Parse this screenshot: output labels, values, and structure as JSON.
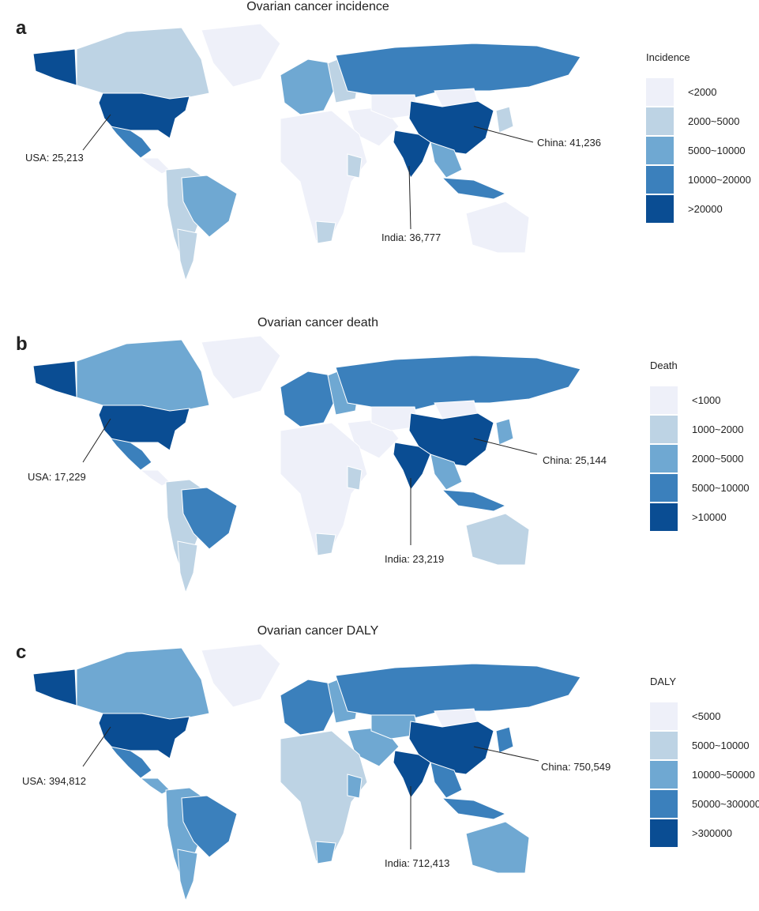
{
  "colors": {
    "ocean": "#ffffff",
    "scale": [
      "#eef0f9",
      "#bdd3e4",
      "#6fa8d2",
      "#3b80bc",
      "#0a4d93"
    ],
    "border": "#ffffff"
  },
  "panels": [
    {
      "id": "a",
      "letter": "a",
      "title": "Ovarian cancer incidence",
      "legend_title": "Incidence",
      "legend": [
        "<2000",
        "2000~5000",
        "5000~10000",
        "10000~20000",
        ">20000"
      ],
      "callouts": {
        "usa": "USA: 25,213",
        "china": "China: 41,236",
        "india": "India: 36,777"
      },
      "levels": {
        "canada": 1,
        "usa": 4,
        "alaska": 4,
        "mexico": 3,
        "central_america": 0,
        "brazil": 2,
        "south_america": 1,
        "argentina": 1,
        "greenland": 0,
        "europe_w": 2,
        "europe_e": 1,
        "russia": 3,
        "africa": 0,
        "south_africa": 1,
        "east_africa": 1,
        "middle_east": 0,
        "central_asia": 0,
        "china": 4,
        "india": 4,
        "se_asia": 2,
        "indonesia": 3,
        "japan": 1,
        "australia": 0,
        "mongolia": 0
      }
    },
    {
      "id": "b",
      "letter": "b",
      "title": "Ovarian cancer death",
      "legend_title": "Death",
      "legend": [
        "<1000",
        "1000~2000",
        "2000~5000",
        "5000~10000",
        ">10000"
      ],
      "callouts": {
        "usa": "USA: 17,229",
        "china": "China: 25,144",
        "india": "India: 23,219"
      },
      "levels": {
        "canada": 2,
        "usa": 4,
        "alaska": 4,
        "mexico": 3,
        "central_america": 0,
        "brazil": 3,
        "south_america": 1,
        "argentina": 1,
        "greenland": 0,
        "europe_w": 3,
        "europe_e": 2,
        "russia": 3,
        "africa": 0,
        "south_africa": 1,
        "east_africa": 1,
        "middle_east": 0,
        "central_asia": 0,
        "china": 4,
        "india": 4,
        "se_asia": 2,
        "indonesia": 3,
        "japan": 2,
        "australia": 1,
        "mongolia": 0
      }
    },
    {
      "id": "c",
      "letter": "c",
      "title": "Ovarian cancer DALY",
      "legend_title": "DALY",
      "legend": [
        "<5000",
        "5000~10000",
        "10000~50000",
        "50000~300000",
        ">300000"
      ],
      "callouts": {
        "usa": "USA: 394,812",
        "china": "China: 750,549",
        "india": "India: 712,413"
      },
      "levels": {
        "canada": 2,
        "usa": 4,
        "alaska": 4,
        "mexico": 3,
        "central_america": 2,
        "brazil": 3,
        "south_america": 2,
        "argentina": 2,
        "greenland": 0,
        "europe_w": 3,
        "europe_e": 2,
        "russia": 3,
        "africa": 1,
        "south_africa": 2,
        "east_africa": 2,
        "middle_east": 2,
        "central_asia": 2,
        "china": 4,
        "india": 4,
        "se_asia": 3,
        "indonesia": 3,
        "japan": 3,
        "australia": 2,
        "mongolia": 0
      }
    }
  ]
}
